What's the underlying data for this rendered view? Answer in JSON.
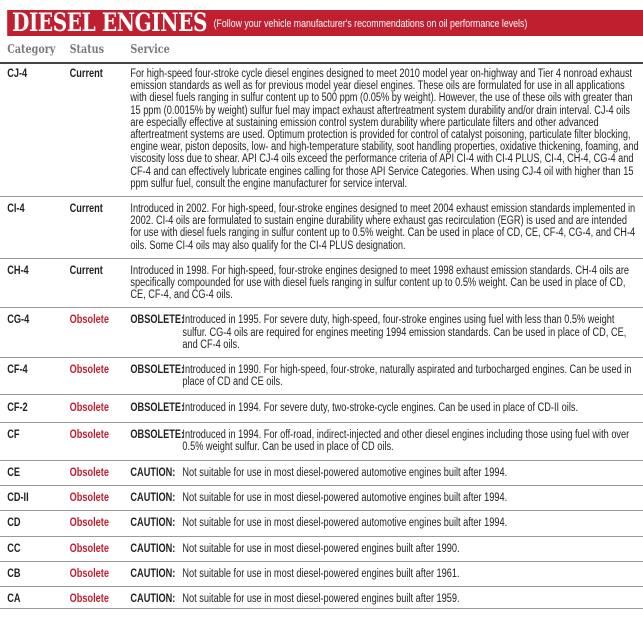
{
  "header": {
    "title": "DIESEL ENGINES",
    "subtitle": "(Follow your vehicle manufacturer's recommendations on oil performance levels)"
  },
  "columns": {
    "category": "Category",
    "status": "Status",
    "service": "Service"
  },
  "colors": {
    "brand_red": "#c01f2f",
    "obsolete": "#c01f2f"
  },
  "rows": [
    {
      "category": "CJ-4",
      "status": "Current",
      "prefix": "",
      "service": "For high-speed four-stroke cycle diesel engines designed to meet 2010 model year on-highway and Tier 4 nonroad exhaust emission standards as well as for previous model year diesel engines. These oils are formulated for use in all applications with diesel fuels ranging in sulfur content up to 500 ppm (0.05% by weight). However, the use of these oils with greater than 15 ppm (0.0015% by weight) sulfur fuel may impact exhaust aftertreatment system durability and/or drain interval. CJ-4 oils are especially effective at sustaining emission control system durability where particulate filters and other advanced aftertreatment systems are used. Optimum protection is provided for control of catalyst poisoning, particulate filter blocking, engine wear, piston deposits, low- and high-temperature stability, soot handling properties, oxidative thickening, foaming, and viscosity loss due to shear. API CJ-4 oils exceed the performance criteria of API CI-4 with CI-4 PLUS, CI-4, CH-4, CG-4 and CF-4 and can effectively lubricate engines calling for those API Service Categories. When using CJ-4 oil with higher than 15 ppm sulfur fuel, consult the engine manufacturer for service interval."
    },
    {
      "category": "CI-4",
      "status": "Current",
      "prefix": "",
      "service": "Introduced in 2002. For high-speed, four-stroke engines designed to meet 2004 exhaust emission standards implemented in 2002. CI-4 oils are formulated to sustain engine durability where exhaust gas recirculation (EGR) is used and are intended for use with diesel fuels ranging in sulfur content up to 0.5% weight. Can be used in place of CD, CE, CF-4, CG-4, and CH-4 oils. Some CI-4 oils may also qualify for the CI-4 PLUS designation."
    },
    {
      "category": "CH-4",
      "status": "Current",
      "prefix": "",
      "service": "Introduced in 1998. For high-speed, four-stroke engines designed to meet 1998 exhaust emission standards. CH-4 oils are specifically compounded for use with diesel fuels ranging in sulfur content up to 0.5% weight. Can be used in place of CD, CE, CF-4, and CG-4 oils."
    },
    {
      "category": "CG-4",
      "status": "Obsolete",
      "prefix": "OBSOLETE:",
      "service": "Introduced in 1995. For severe duty, high-speed, four-stroke engines using fuel with less than 0.5% weight sulfur. CG-4 oils are required for engines meeting 1994 emission standards. Can be used in place of CD, CE, and CF-4 oils."
    },
    {
      "category": "CF-4",
      "status": "Obsolete",
      "prefix": "OBSOLETE:",
      "service": "Introduced in 1990. For high-speed, four-stroke, naturally aspirated and turbocharged engines. Can be used in place of CD and CE oils."
    },
    {
      "category": "CF-2",
      "status": "Obsolete",
      "prefix": "OBSOLETE:",
      "service": "Introduced in 1994. For severe duty, two-stroke-cycle engines. Can be used in place of CD-II oils."
    },
    {
      "category": "CF",
      "status": "Obsolete",
      "prefix": "OBSOLETE:",
      "service": "Introduced in 1994. For off-road, indirect-injected and other diesel engines including those using fuel with over 0.5% weight sulfur. Can be used in place of CD oils."
    },
    {
      "category": "CE",
      "status": "Obsolete",
      "prefix": "CAUTION:",
      "service": "Not suitable for use in most diesel-powered automotive engines built after 1994."
    },
    {
      "category": "CD-II",
      "status": "Obsolete",
      "prefix": "CAUTION:",
      "service": "Not suitable for use in most diesel-powered automotive engines built after 1994."
    },
    {
      "category": "CD",
      "status": "Obsolete",
      "prefix": "CAUTION:",
      "service": "Not suitable for use in most diesel-powered automotive engines built after 1994."
    },
    {
      "category": "CC",
      "status": "Obsolete",
      "prefix": "CAUTION:",
      "service": "Not suitable for use in most diesel-powered engines built after 1990."
    },
    {
      "category": "CB",
      "status": "Obsolete",
      "prefix": "CAUTION:",
      "service": "Not suitable for use in most diesel-powered engines built after 1961."
    },
    {
      "category": "CA",
      "status": "Obsolete",
      "prefix": "CAUTION:",
      "service": "Not suitable for use in most diesel-powered engines built after 1959."
    }
  ]
}
